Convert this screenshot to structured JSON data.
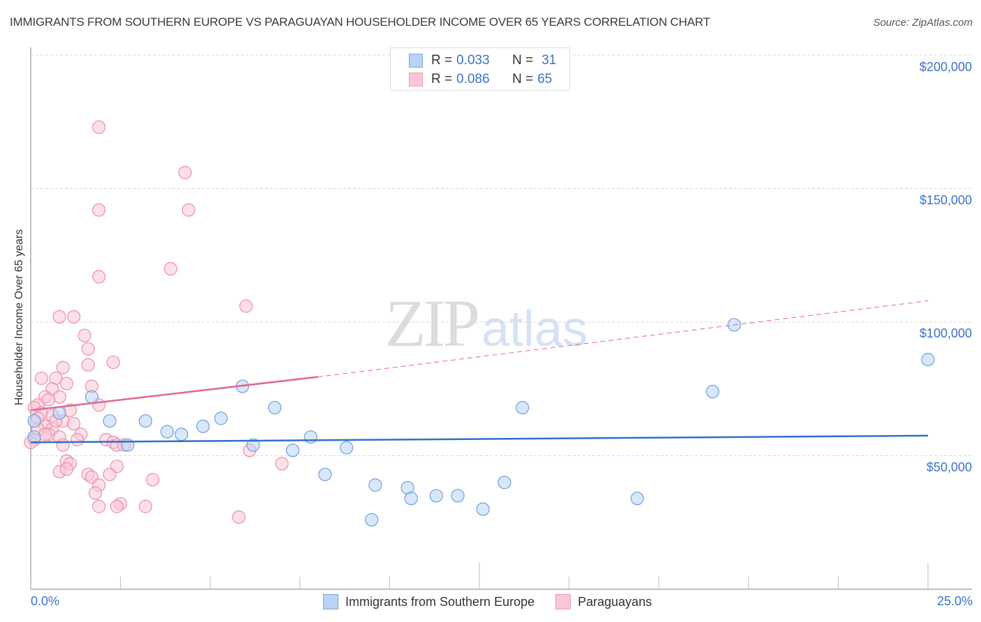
{
  "header": {
    "title": "IMMIGRANTS FROM SOUTHERN EUROPE VS PARAGUAYAN HOUSEHOLDER INCOME OVER 65 YEARS CORRELATION CHART",
    "source": "Source: ZipAtlas.com"
  },
  "stats_box": {
    "rows": [
      {
        "r_label": "R =",
        "r_value": "0.033",
        "n_label": "N =",
        "n_value": "31",
        "series": "blue"
      },
      {
        "r_label": "R =",
        "r_value": "0.086",
        "n_label": "N =",
        "n_value": "65",
        "series": "pink"
      }
    ]
  },
  "axes": {
    "y_label": "Householder Income Over 65 years",
    "y_ticks": [
      "$200,000",
      "$150,000",
      "$100,000",
      "$50,000"
    ],
    "x_min_label": "0.0%",
    "x_max_label": "25.0%"
  },
  "legend": {
    "items": [
      {
        "label": "Immigrants from Southern Europe",
        "color": "#b8d3f5"
      },
      {
        "label": "Paraguayans",
        "color": "#fbc7d6"
      }
    ]
  },
  "watermark": {
    "zip": "ZIP",
    "atlas": "atlas"
  },
  "colors": {
    "blue_fill": "#b8d3f5",
    "blue_stroke": "#6f9fdc",
    "blue_line": "#2f6fce",
    "pink_fill": "#fbc7d6",
    "pink_stroke": "#ea8fac",
    "pink_line": "#e2668e",
    "tick_label": "#3a72c9",
    "grid": "#d9d9d9"
  },
  "chart_data": {
    "type": "scatter",
    "title": "IMMIGRANTS FROM SOUTHERN EUROPE VS PARAGUAYAN HOUSEHOLDER INCOME OVER 65 YEARS CORRELATION CHART",
    "xlabel": "",
    "ylabel": "Householder Income Over 65 years",
    "xlim": [
      0,
      25
    ],
    "ylim": [
      0,
      210000
    ],
    "x_unit": "%",
    "y_ticks": [
      50000,
      100000,
      150000,
      200000
    ],
    "grid": true,
    "legend_position": "bottom",
    "series": [
      {
        "name": "Immigrants from Southern Europe",
        "R": 0.033,
        "N": 31,
        "trend": {
          "x": [
            0,
            25
          ],
          "y": [
            55000,
            57500
          ],
          "style": "solid"
        },
        "points": [
          [
            0.1,
            63000
          ],
          [
            0.1,
            57000
          ],
          [
            0.8,
            66000
          ],
          [
            1.7,
            72000
          ],
          [
            2.2,
            63000
          ],
          [
            2.7,
            54000
          ],
          [
            3.2,
            63000
          ],
          [
            3.8,
            59000
          ],
          [
            4.2,
            58000
          ],
          [
            4.8,
            61000
          ],
          [
            5.3,
            64000
          ],
          [
            5.9,
            76000
          ],
          [
            6.2,
            54000
          ],
          [
            6.8,
            68000
          ],
          [
            7.3,
            52000
          ],
          [
            7.8,
            57000
          ],
          [
            8.2,
            43000
          ],
          [
            8.8,
            53000
          ],
          [
            9.5,
            26000
          ],
          [
            9.6,
            39000
          ],
          [
            10.5,
            38000
          ],
          [
            10.6,
            34000
          ],
          [
            11.3,
            35000
          ],
          [
            11.9,
            35000
          ],
          [
            12.6,
            30000
          ],
          [
            13.2,
            40000
          ],
          [
            13.7,
            68000
          ],
          [
            16.9,
            34000
          ],
          [
            19.0,
            74000
          ],
          [
            19.6,
            99000
          ],
          [
            25.0,
            86000
          ]
        ]
      },
      {
        "name": "Paraguayans",
        "R": 0.086,
        "N": 65,
        "trend": {
          "x": [
            0,
            8.0,
            25
          ],
          "y": [
            67000,
            79500,
            108000
          ],
          "style": "solid-then-dashed"
        },
        "points": [
          [
            1.9,
            173000
          ],
          [
            4.3,
            156000
          ],
          [
            1.9,
            142000
          ],
          [
            4.4,
            142000
          ],
          [
            3.9,
            120000
          ],
          [
            1.9,
            117000
          ],
          [
            6.0,
            106000
          ],
          [
            1.2,
            102000
          ],
          [
            0.8,
            102000
          ],
          [
            1.5,
            95000
          ],
          [
            1.6,
            90000
          ],
          [
            1.6,
            84000
          ],
          [
            2.3,
            85000
          ],
          [
            0.9,
            83000
          ],
          [
            0.3,
            79000
          ],
          [
            0.7,
            79000
          ],
          [
            1.0,
            77000
          ],
          [
            1.7,
            76000
          ],
          [
            0.6,
            75000
          ],
          [
            0.4,
            72000
          ],
          [
            0.8,
            72000
          ],
          [
            0.5,
            71000
          ],
          [
            0.2,
            69000
          ],
          [
            0.1,
            68000
          ],
          [
            1.9,
            69000
          ],
          [
            0.3,
            66000
          ],
          [
            0.6,
            65000
          ],
          [
            1.1,
            67000
          ],
          [
            0.2,
            64000
          ],
          [
            0.9,
            63000
          ],
          [
            1.2,
            62000
          ],
          [
            0.4,
            61000
          ],
          [
            0.6,
            60000
          ],
          [
            0.5,
            58000
          ],
          [
            0.8,
            57000
          ],
          [
            1.4,
            58000
          ],
          [
            0.1,
            56000
          ],
          [
            0.0,
            55000
          ],
          [
            2.1,
            56000
          ],
          [
            2.3,
            55000
          ],
          [
            2.4,
            54000
          ],
          [
            0.9,
            54000
          ],
          [
            6.1,
            52000
          ],
          [
            1.0,
            48000
          ],
          [
            1.1,
            47000
          ],
          [
            2.4,
            46000
          ],
          [
            7.0,
            47000
          ],
          [
            0.8,
            44000
          ],
          [
            1.0,
            45000
          ],
          [
            2.2,
            43000
          ],
          [
            1.6,
            43000
          ],
          [
            1.7,
            42000
          ],
          [
            3.4,
            41000
          ],
          [
            1.9,
            39000
          ],
          [
            1.8,
            36000
          ],
          [
            2.5,
            32000
          ],
          [
            2.4,
            31000
          ],
          [
            1.9,
            31000
          ],
          [
            3.2,
            31000
          ],
          [
            5.8,
            27000
          ],
          [
            0.2,
            60000
          ],
          [
            0.7,
            63000
          ],
          [
            1.3,
            56000
          ],
          [
            0.4,
            58000
          ],
          [
            2.6,
            54000
          ]
        ]
      }
    ]
  }
}
